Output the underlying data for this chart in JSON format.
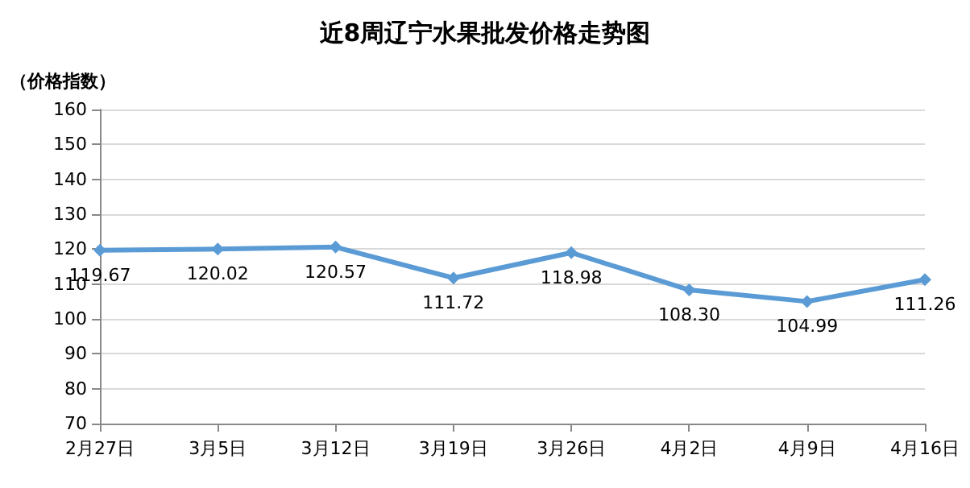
{
  "chart_data": {
    "type": "line",
    "title": "近8周辽宁水果批发价格走势图",
    "ylabel": "（价格指数）",
    "categories": [
      "2月27日",
      "3月5日",
      "3月12日",
      "3月19日",
      "3月26日",
      "4月2日",
      "4月9日",
      "4月16日"
    ],
    "series": [
      {
        "color": "#5b9bd5",
        "values": [
          119.67,
          120.02,
          120.57,
          111.72,
          118.98,
          108.3,
          104.99,
          111.26
        ],
        "value_labels": [
          "119.67",
          "120.02",
          "120.57",
          "111.72",
          "118.98",
          "108.30",
          "104.99",
          "111.26"
        ]
      }
    ],
    "ylim": [
      70,
      160
    ],
    "yticks": [
      70,
      80,
      90,
      100,
      110,
      120,
      130,
      140,
      150,
      160
    ],
    "grid": "y",
    "marker": "diamond",
    "line_style": "solid"
  }
}
